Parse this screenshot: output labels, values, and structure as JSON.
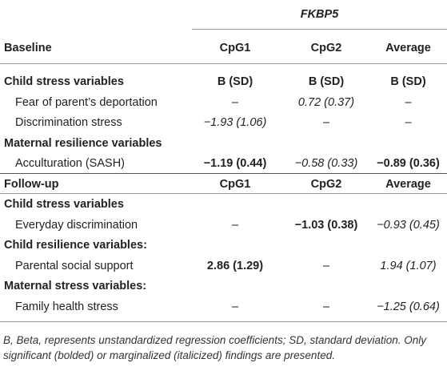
{
  "table": {
    "gene_header": "FKBP5",
    "baseline_header": {
      "label": "Baseline",
      "cols": [
        "CpG1",
        "CpG2",
        "Average"
      ]
    },
    "baseline_rows": [
      {
        "kind": "section",
        "label": "Child stress variables",
        "cells": [
          "B (SD)",
          "B (SD)",
          "B (SD)"
        ]
      },
      {
        "kind": "item",
        "label": "Fear of parent’s deportation",
        "cells": [
          "–",
          "0.72 (0.37)",
          "–"
        ],
        "styles": [
          "n",
          "i",
          "n"
        ]
      },
      {
        "kind": "item",
        "label": "Discrimination stress",
        "cells": [
          "−1.93 (1.06)",
          "–",
          "–"
        ],
        "styles": [
          "i",
          "n",
          "n"
        ]
      },
      {
        "kind": "section",
        "label": "Maternal resilience variables",
        "cells": [
          "",
          "",
          ""
        ]
      },
      {
        "kind": "item",
        "label": "Acculturation (SASH)",
        "cells": [
          "−1.19 (0.44)",
          "−0.58 (0.33)",
          "−0.89 (0.36)"
        ],
        "styles": [
          "b",
          "i",
          "b"
        ]
      }
    ],
    "followup_header": {
      "label": "Follow-up",
      "cols": [
        "CpG1",
        "CpG2",
        "Average"
      ]
    },
    "followup_rows": [
      {
        "kind": "section",
        "label": "Child stress variables",
        "cells": [
          "",
          "",
          ""
        ]
      },
      {
        "kind": "item",
        "label": "Everyday discrimination",
        "cells": [
          "–",
          "−1.03 (0.38)",
          "−0.93 (0.45)"
        ],
        "styles": [
          "n",
          "b",
          "i"
        ]
      },
      {
        "kind": "section",
        "label": "Child resilience variables:",
        "cells": [
          "",
          "",
          ""
        ]
      },
      {
        "kind": "item",
        "label": "Parental social support",
        "cells": [
          "2.86 (1.29)",
          "–",
          "1.94 (1.07)"
        ],
        "styles": [
          "b",
          "n",
          "i"
        ]
      },
      {
        "kind": "section",
        "label": "Maternal stress variables:",
        "cells": [
          "",
          "",
          ""
        ]
      },
      {
        "kind": "item",
        "label": "Family health stress",
        "cells": [
          "–",
          "–",
          "−1.25 (0.64)"
        ],
        "styles": [
          "n",
          "n",
          "i"
        ]
      }
    ],
    "footnote": "B, Beta, represents unstandardized regression coefficients; SD, standard deviation. Only significant (bolded) or marginalized (italicized) findings are presented."
  }
}
